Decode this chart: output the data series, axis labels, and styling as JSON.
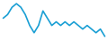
{
  "y_values": [
    5,
    6,
    8,
    9,
    8,
    6,
    3,
    1,
    3,
    7,
    5,
    3,
    4,
    3,
    4,
    3,
    4,
    3,
    2,
    3,
    2,
    1,
    2,
    0
  ],
  "line_color": "#1a9fd4",
  "line_width": 1.2,
  "background_color": "#ffffff"
}
